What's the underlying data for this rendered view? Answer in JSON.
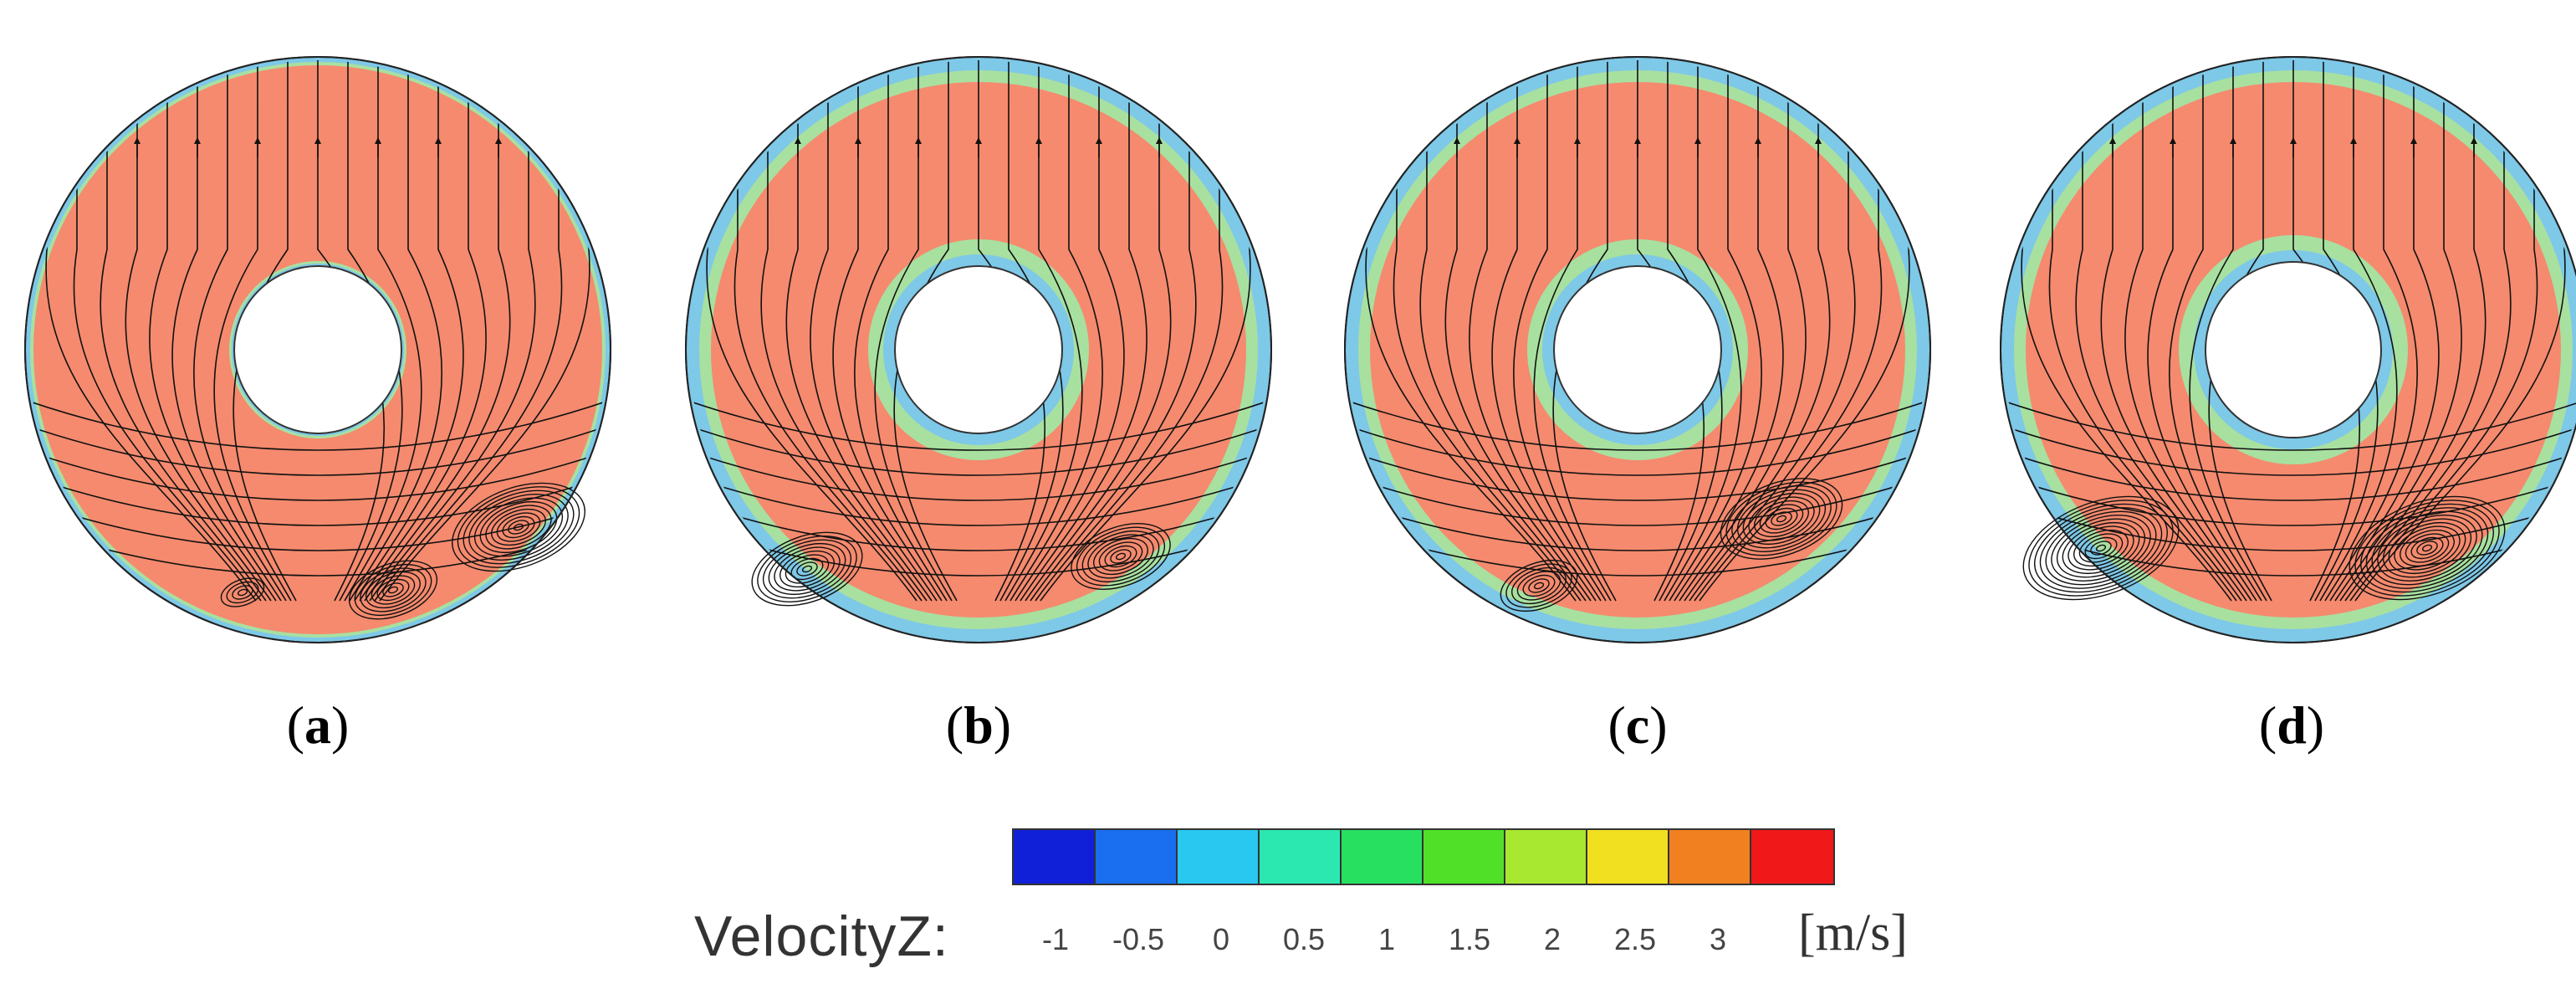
{
  "panels": [
    {
      "label_letter": "a"
    },
    {
      "label_letter": "b"
    },
    {
      "label_letter": "c"
    },
    {
      "label_letter": "d"
    }
  ],
  "colorbar": {
    "title": "VelocityZ:",
    "ticks": [
      "-1",
      "-0.5",
      "0",
      "0.5",
      "1",
      "1.5",
      "2",
      "2.5",
      "3"
    ],
    "unit": "[m/s]",
    "colors": [
      "#1020d8",
      "#1a6ef0",
      "#28c8f0",
      "#2ae8b0",
      "#28e060",
      "#50e028",
      "#a8e830",
      "#f0e020",
      "#f08020",
      "#f01818"
    ]
  },
  "style": {
    "contour_fill": "#f58a6e",
    "wall_blue": "#7ec8e8",
    "wall_green": "#a8e0a0",
    "streamline": "#111111"
  }
}
